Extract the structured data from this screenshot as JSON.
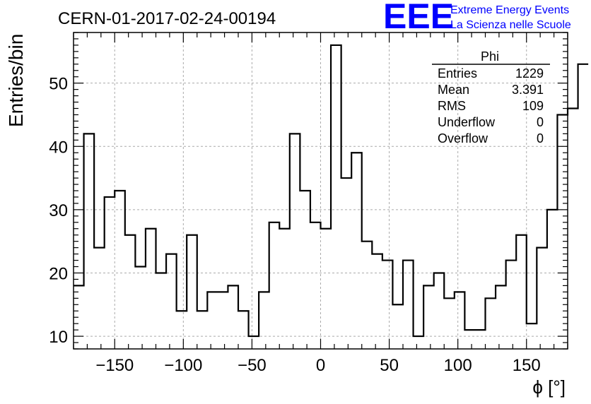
{
  "chart_data": {
    "type": "bar",
    "title": "CERN-01-2017-02-24-00194",
    "xlabel": "ϕ [°]",
    "ylabel": "Entries/bin",
    "xlim": [
      -180,
      180
    ],
    "ylim": [
      8,
      58
    ],
    "grid": true,
    "x_ticks": [
      -150,
      -100,
      -50,
      0,
      50,
      100,
      150
    ],
    "y_ticks": [
      10,
      20,
      30,
      40,
      50
    ],
    "bin_width": 7.5,
    "values": [
      18,
      42,
      24,
      32,
      33,
      26,
      21,
      27,
      20,
      23,
      14,
      26,
      14,
      17,
      17,
      18,
      14,
      10,
      17,
      28,
      27,
      42,
      33,
      28,
      27,
      56,
      35,
      39,
      25,
      23,
      22,
      15,
      22,
      10,
      18,
      20,
      16,
      17,
      11,
      11,
      16,
      18,
      22,
      26,
      12,
      24,
      30,
      45,
      46,
      53
    ]
  },
  "logo": {
    "mark": "EEE",
    "line1": "Extreme Energy Events",
    "line2": "La Scienza nelle Scuole"
  },
  "stats": {
    "title": "Phi",
    "rows": [
      {
        "label": "Entries",
        "value": "1229"
      },
      {
        "label": "Mean",
        "value": "3.391"
      },
      {
        "label": "RMS",
        "value": "109"
      },
      {
        "label": "Underflow",
        "value": "0"
      },
      {
        "label": "Overflow",
        "value": "0"
      }
    ]
  }
}
